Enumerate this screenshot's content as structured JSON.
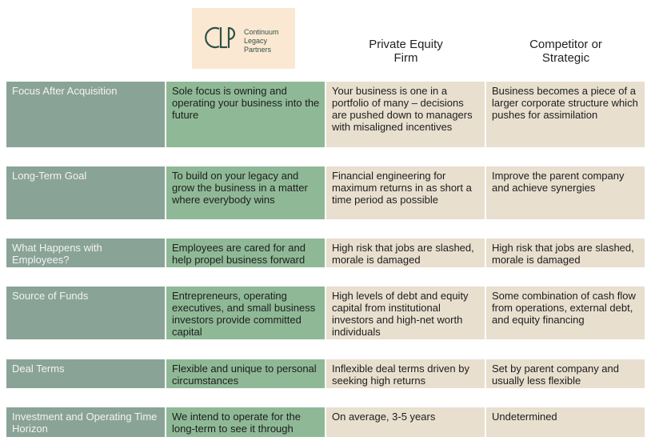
{
  "logo": {
    "mark": "CLP",
    "line1": "Continuum",
    "line2": "Legacy",
    "line3": "Partners"
  },
  "headers": {
    "col2_line1": "Private Equity",
    "col2_line2": "Firm",
    "col3_line1": "Competitor or",
    "col3_line2": "Strategic"
  },
  "rows": [
    {
      "label": "Focus After Acquisition",
      "clp": "Sole focus is owning and operating your business into the future",
      "pe": "Your business is one in a portfolio of many – decisions are pushed down to managers with misaligned incentives",
      "strategic": "Business becomes a piece of a larger corporate structure which pushes for assimilation"
    },
    {
      "label": "Long-Term Goal",
      "clp": "To build on your legacy and grow the business in a matter where everybody wins",
      "pe": "Financial engineering for maximum returns in as short a time period as possible",
      "strategic": "Improve the parent company and achieve synergies"
    },
    {
      "label": "What Happens with Employees?",
      "clp": "Employees are cared for and help propel business forward",
      "pe": "High risk that jobs are slashed, morale is damaged",
      "strategic": "High risk that jobs are slashed, morale is damaged"
    },
    {
      "label": "Source of Funds",
      "clp": "Entrepreneurs, operating executives, and small business investors provide committed capital",
      "pe": "High levels of debt and equity capital from institutional investors and high-net worth individuals",
      "strategic": "Some combination of cash flow from operations, external debt, and equity financing"
    },
    {
      "label": "Deal Terms",
      "clp": "Flexible and unique to personal circumstances",
      "pe": "Inflexible deal terms driven by seeking high returns",
      "strategic": "Set by parent company and usually less flexible"
    },
    {
      "label": "Investment and Operating Time Horizon",
      "clp": "We intend to operate for the long-term to see it through",
      "pe": "On average, 3-5 years",
      "strategic": "Undetermined"
    }
  ]
}
